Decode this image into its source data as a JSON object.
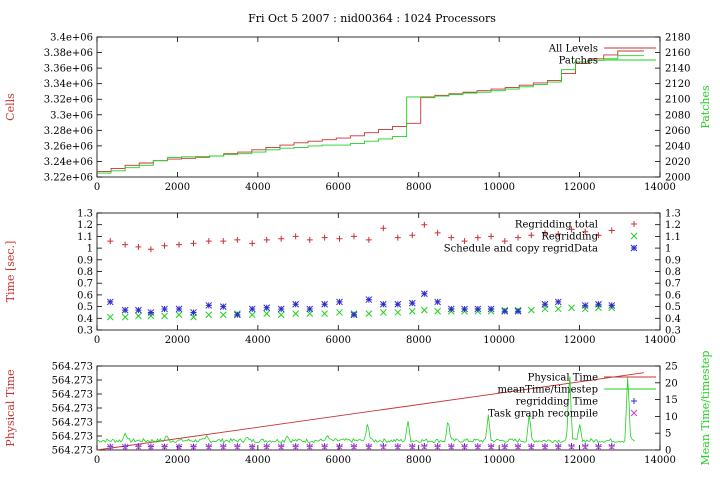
{
  "title": "Fri Oct 5 2007 : nid00364 : 1024 Processors",
  "chart_data": [
    {
      "type": "line",
      "xlim": [
        0,
        14000
      ],
      "xticks": [
        "0",
        "2000",
        "4000",
        "6000",
        "8000",
        "10000",
        "12000",
        "14000"
      ],
      "ylabel": "Cells",
      "ylim": [
        3220000,
        3400000
      ],
      "yticks": [
        "3.22e+06",
        "3.24e+06",
        "3.26e+06",
        "3.28e+06",
        "3.3e+06",
        "3.32e+06",
        "3.34e+06",
        "3.36e+06",
        "3.38e+06",
        "3.4e+06"
      ],
      "y2label": "Patches",
      "y2lim": [
        2000,
        2180
      ],
      "y2ticks": [
        "2000",
        "2020",
        "2040",
        "2060",
        "2080",
        "2100",
        "2120",
        "2140",
        "2160",
        "2180"
      ],
      "legend": "top-right",
      "grid": false,
      "series": [
        {
          "name": "All Levels",
          "color": "#c83232",
          "axis": "left",
          "step": true,
          "x": [
            0,
            350,
            700,
            1050,
            1400,
            1750,
            2100,
            2450,
            2800,
            3150,
            3500,
            3850,
            4200,
            4550,
            4900,
            5250,
            5600,
            5950,
            6300,
            6650,
            7000,
            7350,
            7700,
            8050,
            8400,
            8750,
            9100,
            9450,
            9800,
            10150,
            10500,
            10850,
            11200,
            11550,
            11900,
            12250,
            12600,
            12950,
            13300
          ],
          "values": [
            3227000,
            3231000,
            3235000,
            3238000,
            3241000,
            3243000,
            3244000,
            3246000,
            3247000,
            3250000,
            3252000,
            3255000,
            3258000,
            3261000,
            3264000,
            3266000,
            3268000,
            3270000,
            3273000,
            3277000,
            3281000,
            3285000,
            3289000,
            3323000,
            3325000,
            3327000,
            3329000,
            3331000,
            3333000,
            3335000,
            3338000,
            3341000,
            3344000,
            3353000,
            3366000,
            3372000,
            3377000,
            3382000,
            3382000
          ]
        },
        {
          "name": "Patches",
          "color": "#1fd11f",
          "axis": "right",
          "step": true,
          "x": [
            0,
            350,
            700,
            1050,
            1400,
            1750,
            2100,
            2450,
            2800,
            3150,
            3500,
            3850,
            4200,
            4550,
            4900,
            5250,
            5600,
            5950,
            6300,
            6650,
            7000,
            7350,
            7700,
            8050,
            8400,
            8750,
            9100,
            9450,
            9800,
            10150,
            10500,
            10850,
            11200,
            11550,
            11900,
            12250,
            12600,
            12950,
            13300
          ],
          "values": [
            2005,
            2008,
            2012,
            2015,
            2021,
            2025,
            2026,
            2025,
            2027,
            2029,
            2030,
            2032,
            2035,
            2037,
            2038,
            2040,
            2041,
            2041,
            2043,
            2046,
            2049,
            2052,
            2103,
            2102,
            2104,
            2106,
            2108,
            2109,
            2111,
            2113,
            2116,
            2119,
            2122,
            2138,
            2148,
            2150,
            2152,
            2156,
            2156
          ]
        }
      ]
    },
    {
      "type": "scatter",
      "xlim": [
        0,
        14000
      ],
      "xticks": [
        "0",
        "2000",
        "4000",
        "6000",
        "8000",
        "10000",
        "12000",
        "14000"
      ],
      "ylabel": "Time [sec.]",
      "ylim": [
        0.3,
        1.3
      ],
      "yticks": [
        "0.3",
        "0.4",
        "0.5",
        "0.6",
        "0.7",
        "0.8",
        "0.9",
        "1",
        "1.1",
        "1.2",
        "1.3"
      ],
      "y2ticks": [
        "0.3",
        "0.4",
        "0.5",
        "0.6",
        "0.7",
        "0.8",
        "0.9",
        "1",
        "1.1",
        "1.2",
        "1.3"
      ],
      "legend": "top-right",
      "grid": false,
      "series": [
        {
          "name": "Regridding total",
          "color": "#c83232",
          "marker": "plus",
          "x": [
            330,
            700,
            1030,
            1340,
            1680,
            2040,
            2400,
            2780,
            3140,
            3490,
            3860,
            4220,
            4580,
            4940,
            5290,
            5660,
            6030,
            6390,
            6760,
            7120,
            7480,
            7840,
            8140,
            8470,
            8810,
            9140,
            9470,
            9800,
            10140,
            10470,
            10800,
            11140,
            11470,
            11800,
            12140,
            12470,
            12800
          ],
          "values": [
            1.06,
            1.03,
            1.01,
            0.99,
            1.02,
            1.03,
            1.04,
            1.06,
            1.06,
            1.07,
            1.04,
            1.07,
            1.08,
            1.1,
            1.07,
            1.09,
            1.08,
            1.1,
            1.07,
            1.17,
            1.09,
            1.11,
            1.2,
            1.13,
            1.09,
            1.06,
            1.09,
            1.1,
            1.06,
            1.09,
            1.11,
            1.13,
            1.12,
            1.16,
            1.14,
            1.11,
            1.15
          ]
        },
        {
          "name": "Regridding",
          "color": "#1fd11f",
          "marker": "cross",
          "x": [
            330,
            700,
            1030,
            1340,
            1680,
            2040,
            2400,
            2780,
            3140,
            3490,
            3860,
            4220,
            4580,
            4940,
            5290,
            5660,
            6030,
            6390,
            6760,
            7120,
            7480,
            7840,
            8140,
            8470,
            8810,
            9140,
            9470,
            9800,
            10140,
            10470,
            10800,
            11140,
            11470,
            11800,
            12140,
            12470,
            12800
          ],
          "values": [
            0.41,
            0.41,
            0.42,
            0.42,
            0.42,
            0.43,
            0.41,
            0.43,
            0.43,
            0.44,
            0.43,
            0.44,
            0.43,
            0.44,
            0.44,
            0.44,
            0.45,
            0.44,
            0.44,
            0.45,
            0.45,
            0.46,
            0.47,
            0.46,
            0.46,
            0.46,
            0.46,
            0.46,
            0.47,
            0.47,
            0.47,
            0.48,
            0.48,
            0.49,
            0.48,
            0.49,
            0.49
          ]
        },
        {
          "name": "Schedule and copy regridData",
          "color": "#2c2ccc",
          "marker": "star",
          "x": [
            330,
            700,
            1030,
            1340,
            1680,
            2040,
            2400,
            2780,
            3140,
            3490,
            3860,
            4220,
            4580,
            4940,
            5290,
            5660,
            6030,
            6390,
            6760,
            7120,
            7480,
            7840,
            8140,
            8470,
            8810,
            9140,
            9470,
            9800,
            10140,
            10470,
            11140,
            11470,
            12140,
            12470,
            12800
          ],
          "values": [
            0.54,
            0.47,
            0.47,
            0.45,
            0.48,
            0.48,
            0.45,
            0.51,
            0.5,
            0.43,
            0.48,
            0.49,
            0.48,
            0.52,
            0.48,
            0.52,
            0.54,
            0.43,
            0.56,
            0.52,
            0.52,
            0.53,
            0.61,
            0.54,
            0.48,
            0.48,
            0.48,
            0.48,
            0.46,
            0.46,
            0.52,
            0.54,
            0.51,
            0.52,
            0.51
          ]
        }
      ]
    },
    {
      "type": "line",
      "xlim": [
        0,
        14000
      ],
      "xticks": [
        "0",
        "2000",
        "4000",
        "6000",
        "8000",
        "10000",
        "12000",
        "14000"
      ],
      "ylabel": "Physical Time",
      "yticks": [
        "564.273",
        "564.273",
        "564.273",
        "564.273",
        "564.273",
        "564.273",
        "564.273"
      ],
      "y2label": "Mean Time/timestep",
      "y2lim": [
        0,
        25
      ],
      "y2ticks": [
        "0",
        "5",
        "10",
        "15",
        "20",
        "25"
      ],
      "legend": "top-right",
      "grid": false,
      "series": [
        {
          "name": "Physical Time",
          "color": "#c83232",
          "axis": "left",
          "x": [
            0,
            13600
          ],
          "values": [
            0,
            1
          ],
          "note_units": "normalized"
        },
        {
          "name": "meanTime/timestep",
          "color": "#1fd11f",
          "axis": "right",
          "baseline": 2.8,
          "peaks_x": [
            700,
            1730,
            2730,
            3730,
            4730,
            5730,
            6730,
            7730,
            8730,
            9730,
            10750,
            11750,
            12000,
            13200
          ],
          "peaks_y": [
            5.0,
            4.5,
            4.3,
            4.0,
            4.2,
            4.5,
            8.5,
            9.0,
            9.5,
            10.5,
            11.0,
            25.0,
            8.0,
            23.0
          ]
        },
        {
          "name": "regridding Time",
          "color": "#2c2ccc",
          "axis": "right",
          "marker": "plus",
          "x": [
            330,
            700,
            1030,
            1340,
            1680,
            2040,
            2400,
            2780,
            3140,
            3490,
            3860,
            4220,
            4580,
            4940,
            5290,
            5660,
            6030,
            6390,
            6760,
            7120,
            7480,
            7840,
            8140,
            8470,
            8810,
            9140,
            9470,
            9800,
            10140,
            10470,
            10800,
            11140,
            11470,
            11800,
            12140,
            12470,
            12800
          ],
          "values": [
            1.0,
            1.0,
            1.1,
            1.0,
            1.0,
            1.0,
            1.0,
            1.1,
            1.1,
            1.1,
            1.0,
            1.1,
            1.1,
            1.1,
            1.1,
            1.1,
            1.1,
            1.1,
            1.1,
            1.2,
            1.1,
            1.1,
            1.2,
            1.1,
            1.1,
            1.1,
            1.1,
            1.1,
            1.1,
            1.1,
            1.1,
            1.1,
            1.1,
            1.2,
            1.2,
            1.1,
            1.2
          ]
        },
        {
          "name": "Task graph recompile",
          "color": "#cc44cc",
          "axis": "right",
          "marker": "cross",
          "x": [
            330,
            700,
            1030,
            1340,
            1680,
            2040,
            2400,
            2780,
            3140,
            3490,
            3860,
            4220,
            4580,
            4940,
            5290,
            5660,
            6030,
            6390,
            6760,
            7120,
            7480,
            7840,
            8140,
            8470,
            8810,
            9140,
            9470,
            9800,
            10140,
            10470,
            10800,
            11140,
            11470,
            11800,
            12140,
            12470,
            12800
          ],
          "values": [
            0.9,
            0.9,
            0.9,
            0.9,
            0.9,
            0.9,
            0.9,
            0.9,
            0.9,
            0.9,
            0.9,
            0.9,
            0.9,
            0.9,
            0.9,
            0.9,
            0.9,
            0.9,
            0.9,
            0.9,
            0.9,
            0.9,
            0.9,
            0.9,
            0.9,
            0.9,
            0.9,
            0.9,
            0.9,
            0.9,
            0.9,
            0.9,
            0.9,
            0.9,
            0.9,
            0.9,
            0.9
          ]
        }
      ]
    }
  ]
}
